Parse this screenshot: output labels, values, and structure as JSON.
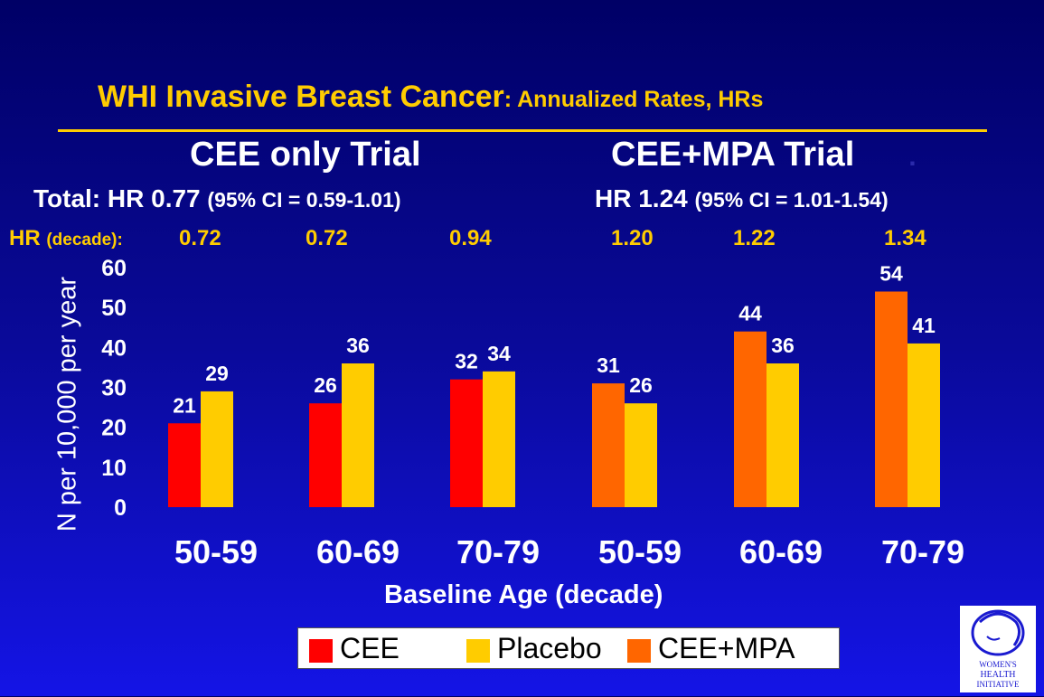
{
  "title": {
    "main": "WHI Invasive Breast Cancer",
    "sub": ": Annualized Rates, HRs"
  },
  "trials": [
    {
      "name": "CEE only Trial",
      "total_prefix": "Total: HR 0.77",
      "total_ci": "(95% CI = 0.59-1.01)"
    },
    {
      "name": "CEE+MPA Trial",
      "name_suffix": ".",
      "total_prefix": "HR 1.24",
      "total_ci": "(95% CI = 1.01-1.54)",
      "total_close": ")"
    }
  ],
  "hr_row": {
    "label": "HR",
    "label_small": "(decade):",
    "values": [
      "0.72",
      "0.72",
      "0.94",
      "1.20",
      "1.22",
      "1.34"
    ]
  },
  "colors": {
    "cee": "#ff0000",
    "placebo": "#ffcc00",
    "cee_mpa": "#ff6600",
    "title": "#ffcc00"
  },
  "logo": {
    "lines": [
      "WOMEN'S",
      "HEALTH",
      "INITIATIVE"
    ]
  },
  "legend": [
    {
      "label": "CEE",
      "color": "#ff0000"
    },
    {
      "label": "Placebo",
      "color": "#ffcc00"
    },
    {
      "label": "CEE+MPA",
      "color": "#ff6600"
    }
  ],
  "chart_data": {
    "type": "bar",
    "categories": [
      "50-59",
      "60-69",
      "70-79",
      "50-59",
      "60-69",
      "70-79"
    ],
    "groups": [
      {
        "treatment": "CEE",
        "treatment_color": "#ff0000",
        "treatment_value": 21,
        "placebo_value": 29
      },
      {
        "treatment": "CEE",
        "treatment_color": "#ff0000",
        "treatment_value": 26,
        "placebo_value": 36
      },
      {
        "treatment": "CEE",
        "treatment_color": "#ff0000",
        "treatment_value": 32,
        "placebo_value": 34
      },
      {
        "treatment": "CEE+MPA",
        "treatment_color": "#ff6600",
        "treatment_value": 31,
        "placebo_value": 26
      },
      {
        "treatment": "CEE+MPA",
        "treatment_color": "#ff6600",
        "treatment_value": 44,
        "placebo_value": 36
      },
      {
        "treatment": "CEE+MPA",
        "treatment_color": "#ff6600",
        "treatment_value": 54,
        "placebo_value": 41
      }
    ],
    "ylabel": "N per 10,000 per year",
    "xlabel": "Baseline Age (decade)",
    "ylim": [
      0,
      60
    ],
    "yticks": [
      0,
      10,
      20,
      30,
      40,
      50,
      60
    ],
    "grid": false,
    "legend_position": "bottom"
  }
}
